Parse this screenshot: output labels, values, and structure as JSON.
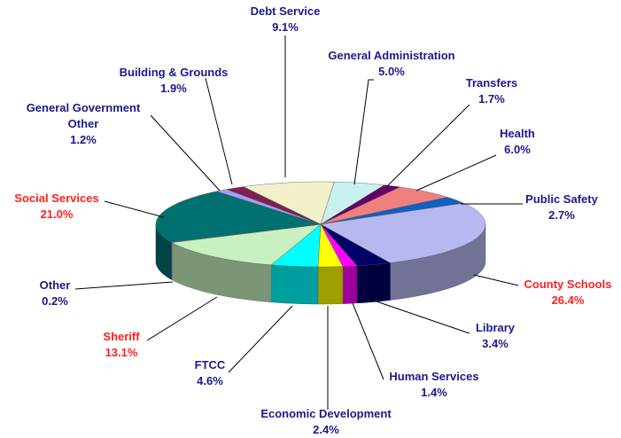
{
  "chart_data": {
    "type": "pie3d",
    "categories": [
      "Debt Service",
      "General Administration",
      "Transfers",
      "Health",
      "Public Safety",
      "County Schools",
      "Library",
      "Human Services",
      "Economic Development",
      "FTCC",
      "Sheriff",
      "Other",
      "Social Services",
      "General Government Other",
      "Building & Grounds"
    ],
    "values": [
      9.1,
      5.0,
      1.7,
      6.0,
      2.7,
      26.4,
      3.4,
      1.4,
      2.4,
      4.6,
      13.1,
      0.2,
      21.0,
      1.2,
      1.9
    ],
    "value_labels": [
      "9.1%",
      "5.0%",
      "1.7%",
      "6.0%",
      "2.7%",
      "26.4%",
      "3.4%",
      "1.4%",
      "2.4%",
      "4.6%",
      "13.1%",
      "0.2%",
      "21.0%",
      "1.2%",
      "1.9%"
    ],
    "colors": [
      "#f2f0c8",
      "#c8f0f0",
      "#660066",
      "#f08080",
      "#1060c0",
      "#b8b8f0",
      "#000066",
      "#ff00ff",
      "#ffff00",
      "#00ffff",
      "#c8f0c0",
      "#8080c0",
      "#007070",
      "#a0a0ff",
      "#802050"
    ],
    "label_colors": [
      "#1a1a8c",
      "#1a1a8c",
      "#1a1a8c",
      "#1a1a8c",
      "#1a1a8c",
      "#ff2020",
      "#1a1a8c",
      "#1a1a8c",
      "#1a1a8c",
      "#1a1a8c",
      "#ff2020",
      "#1a1a8c",
      "#ff2020",
      "#1a1a8c",
      "#1a1a8c"
    ]
  }
}
